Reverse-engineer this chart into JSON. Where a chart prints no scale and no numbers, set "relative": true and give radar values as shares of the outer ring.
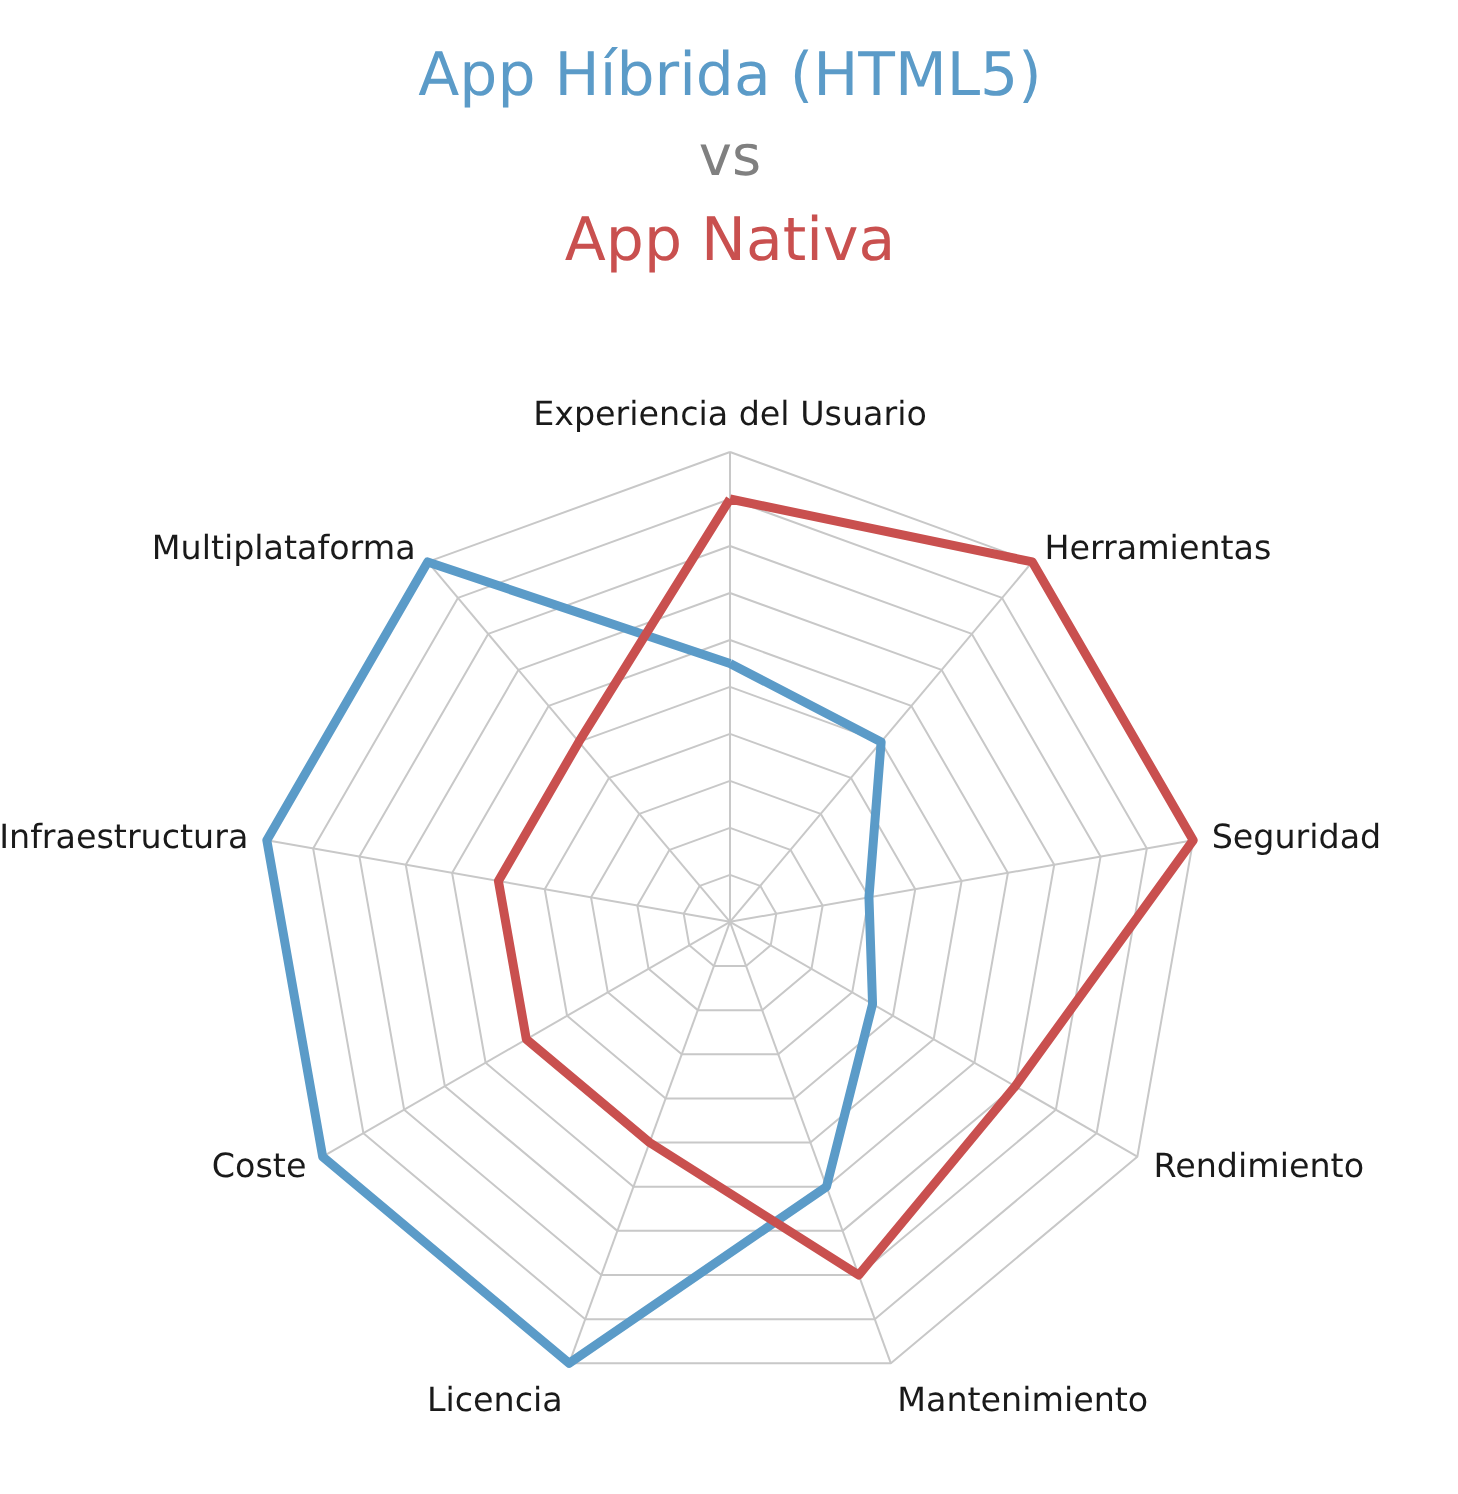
{
  "chart_data": {
    "type": "radar",
    "title": "vs",
    "relative": true,
    "grid": true,
    "line_style": "solid",
    "marker": "none",
    "categories": [
      "Experiencia del Usuario",
      "Herramientas",
      "Seguridad",
      "Rendimiento",
      "Mantenimiento",
      "Licencia",
      "Coste",
      "Infraestructura",
      "Multiplataforma"
    ],
    "series": [
      {
        "name": "App Híbrida (HTML5)",
        "color": "#5b9bc8",
        "values": [
          0.55,
          0.5,
          0.3,
          0.35,
          0.6,
          1,
          1,
          1,
          1
        ]
      },
      {
        "name": "App Nativa",
        "color": "#c9504f",
        "values": [
          0.9,
          1,
          1,
          0.7,
          0.8,
          0.5,
          0.5,
          0.5,
          0.5
        ]
      }
    ]
  }
}
